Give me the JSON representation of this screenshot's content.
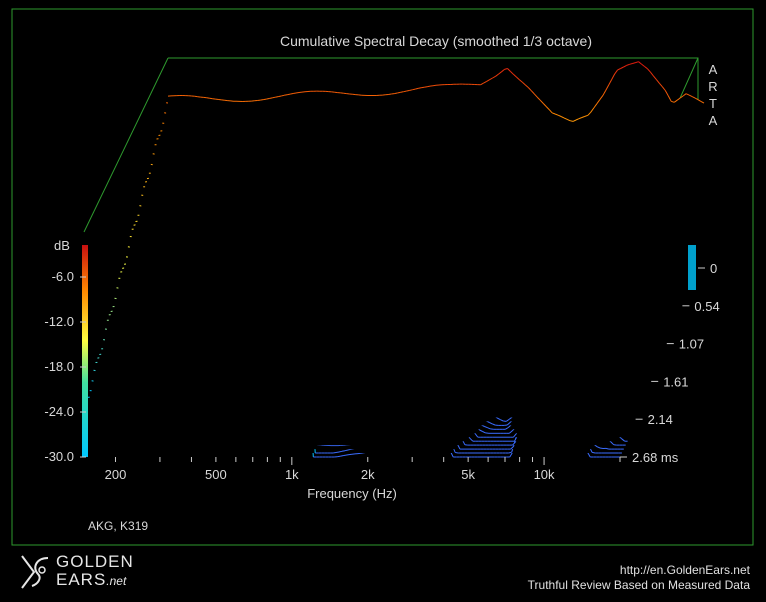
{
  "chart_data": {
    "type": "waterfall",
    "title": "Cumulative Spectral Decay (smoothed 1/3 octave)",
    "xlabel": "Frequency (Hz)",
    "zlabel": "dB",
    "x_ticks": [
      "200",
      "500",
      "1k",
      "2k",
      "5k",
      "10k"
    ],
    "x_tick_values": [
      200,
      500,
      1000,
      2000,
      5000,
      10000
    ],
    "xlim": [
      150,
      20000
    ],
    "db_ticks": [
      "-6.0",
      "-12.0",
      "-18.0",
      "-24.0",
      "-30.0"
    ],
    "db_range": [
      -30,
      0
    ],
    "time_ticks": [
      "0",
      "0.54",
      "1.07",
      "1.61",
      "2.14",
      "2.68 ms"
    ],
    "time_range_ms": [
      0,
      2.68
    ],
    "slices": 45,
    "profile_freq_hz": [
      150,
      200,
      300,
      500,
      700,
      1000,
      1500,
      2000,
      2600,
      3000,
      3300,
      4000,
      5000,
      6000,
      7000,
      8000,
      9000,
      10000,
      11000,
      12000,
      14000,
      15000,
      17000,
      20000
    ],
    "profile_db": [
      -5.5,
      -5.5,
      -5.3,
      -5.0,
      -4.8,
      -4.5,
      -4.2,
      -4.0,
      -3.5,
      -2.0,
      -0.8,
      -3.5,
      -7.5,
      -9.0,
      -8.0,
      -5.0,
      -1.5,
      -0.5,
      0,
      -1.0,
      -4.0,
      -6.0,
      -5.0,
      -6.5
    ],
    "grid": true
  },
  "vendor_mark": "ARTA",
  "caption": "AKG, K319",
  "footer": {
    "brand_line1": "GOLDEN",
    "brand_line2": "EARS",
    "brand_suffix": ".net",
    "url": "http://en.GoldenEars.net",
    "tagline": "Truthful Review Based on Measured Data"
  },
  "colors": {
    "frame": "#2e9a2e",
    "colormap": [
      "#2a52ff",
      "#00c8ff",
      "#ffff40",
      "#ff8a00",
      "#e01010"
    ]
  }
}
